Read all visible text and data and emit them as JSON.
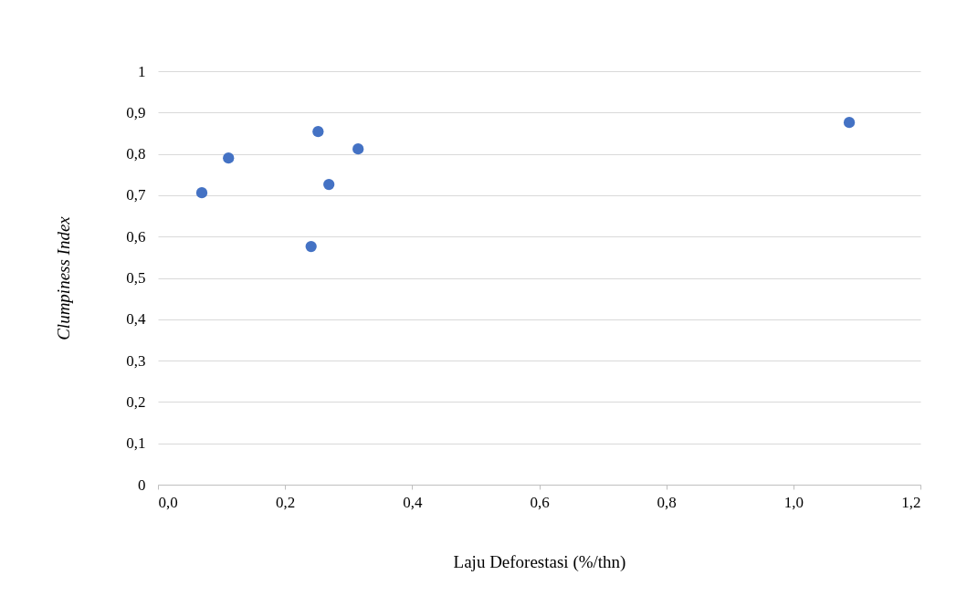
{
  "chart_data": {
    "type": "scatter",
    "xlabel": "Laju Deforestasi (%/thn)",
    "ylabel": "Clumpiness Index",
    "x": [
      0.069,
      0.111,
      0.252,
      0.241,
      0.269,
      0.315,
      1.088
    ],
    "series": [
      {
        "color": "#4472c4",
        "values": [
          0.706,
          0.79,
          0.854,
          0.576,
          0.726,
          0.812,
          0.876
        ]
      }
    ],
    "xlim": [
      0,
      1.2
    ],
    "ylim": [
      0,
      1
    ],
    "xticks": [
      {
        "value": 0,
        "label": "0,0"
      },
      {
        "value": 0.2,
        "label": "0,2"
      },
      {
        "value": 0.4,
        "label": "0,4"
      },
      {
        "value": 0.6,
        "label": "0,6"
      },
      {
        "value": 0.8,
        "label": "0,8"
      },
      {
        "value": 1,
        "label": "1,0"
      },
      {
        "value": 1.2,
        "label": "1,2"
      }
    ],
    "yticks": [
      0,
      {
        "value": 0.1,
        "label": "0,1"
      },
      {
        "value": 0.2,
        "label": "0,2"
      },
      {
        "value": 0.3,
        "label": "0,3"
      },
      {
        "value": 0.4,
        "label": "0,4"
      },
      {
        "value": 0.5,
        "label": "0,5"
      },
      {
        "value": 0.6,
        "label": "0,6"
      },
      {
        "value": 0.7,
        "label": "0,7"
      },
      {
        "value": 0.8,
        "label": "0,8"
      },
      {
        "value": 0.9,
        "label": "0,9"
      },
      1
    ],
    "grid": "y",
    "marker": "circle"
  }
}
